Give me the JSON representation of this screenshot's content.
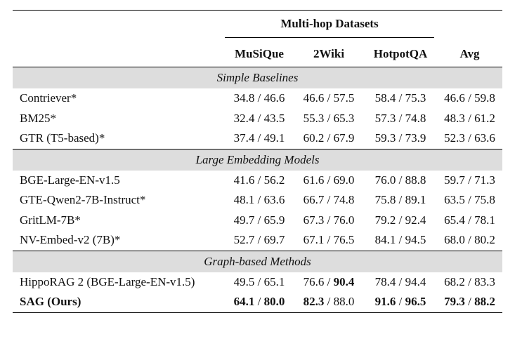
{
  "header": {
    "group_label": "Multi-hop Datasets",
    "columns": [
      "MuSiQue",
      "2Wiki",
      "HotpotQA",
      "Avg"
    ]
  },
  "sections": [
    {
      "title": "Simple Baselines",
      "rows": [
        {
          "name": "Contriever*",
          "cells": [
            {
              "a": "34.8",
              "b": "46.6"
            },
            {
              "a": "46.6",
              "b": "57.5"
            },
            {
              "a": "58.4",
              "b": "75.3"
            },
            {
              "a": "46.6",
              "b": "59.8"
            }
          ]
        },
        {
          "name": "BM25*",
          "cells": [
            {
              "a": "32.4",
              "b": "43.5"
            },
            {
              "a": "55.3",
              "b": "65.3"
            },
            {
              "a": "57.3",
              "b": "74.8"
            },
            {
              "a": "48.3",
              "b": "61.2"
            }
          ]
        },
        {
          "name": "GTR (T5-based)*",
          "cells": [
            {
              "a": "37.4",
              "b": "49.1"
            },
            {
              "a": "60.2",
              "b": "67.9"
            },
            {
              "a": "59.3",
              "b": "73.9"
            },
            {
              "a": "52.3",
              "b": "63.6"
            }
          ]
        }
      ]
    },
    {
      "title": "Large Embedding Models",
      "rows": [
        {
          "name": "BGE-Large-EN-v1.5",
          "cells": [
            {
              "a": "41.6",
              "b": "56.2"
            },
            {
              "a": "61.6",
              "b": "69.0"
            },
            {
              "a": "76.0",
              "b": "88.8"
            },
            {
              "a": "59.7",
              "b": "71.3"
            }
          ]
        },
        {
          "name": "GTE-Qwen2-7B-Instruct*",
          "cells": [
            {
              "a": "48.1",
              "b": "63.6"
            },
            {
              "a": "66.7",
              "b": "74.8"
            },
            {
              "a": "75.8",
              "b": "89.1"
            },
            {
              "a": "63.5",
              "b": "75.8"
            }
          ]
        },
        {
          "name": "GritLM-7B*",
          "cells": [
            {
              "a": "49.7",
              "b": "65.9"
            },
            {
              "a": "67.3",
              "b": "76.0"
            },
            {
              "a": "79.2",
              "b": "92.4"
            },
            {
              "a": "65.4",
              "b": "78.1"
            }
          ]
        },
        {
          "name": "NV-Embed-v2 (7B)*",
          "cells": [
            {
              "a": "52.7",
              "b": "69.7"
            },
            {
              "a": "67.1",
              "b": "76.5"
            },
            {
              "a": "84.1",
              "b": "94.5"
            },
            {
              "a": "68.0",
              "b": "80.2"
            }
          ]
        }
      ]
    },
    {
      "title": "Graph-based Methods",
      "rows": [
        {
          "name": "HippoRAG 2 (BGE-Large-EN-v1.5)",
          "cells": [
            {
              "a": "49.5",
              "b": "65.1"
            },
            {
              "a": "76.6",
              "b": "90.4",
              "bold_b": true
            },
            {
              "a": "78.4",
              "b": "94.4"
            },
            {
              "a": "68.2",
              "b": "83.3"
            }
          ]
        },
        {
          "name": "SAG (Ours)",
          "bold_name": true,
          "cells": [
            {
              "a": "64.1",
              "b": "80.0",
              "bold_a": true,
              "bold_b": true
            },
            {
              "a": "82.3",
              "b": "88.0",
              "bold_a": true
            },
            {
              "a": "91.6",
              "b": "96.5",
              "bold_a": true,
              "bold_b": true
            },
            {
              "a": "79.3",
              "b": "88.2",
              "bold_a": true,
              "bold_b": true
            }
          ]
        }
      ]
    }
  ]
}
